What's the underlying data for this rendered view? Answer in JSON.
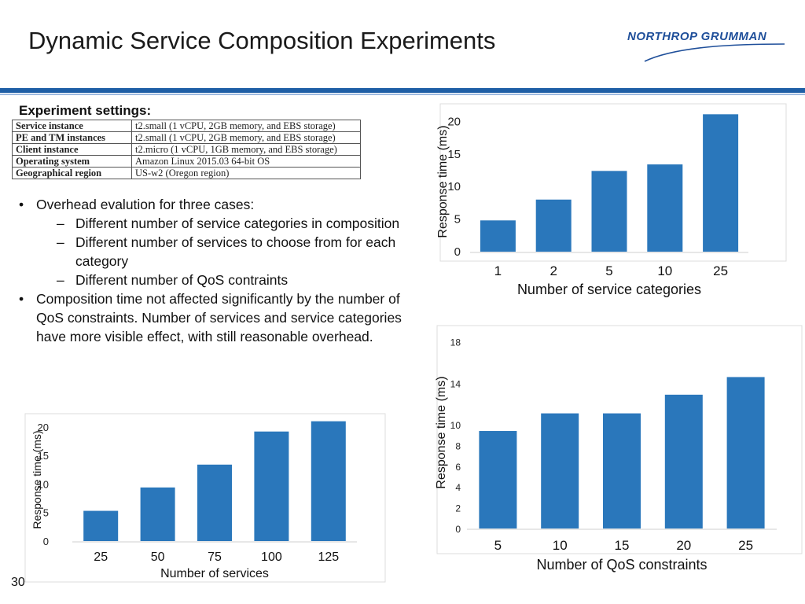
{
  "slide": {
    "title": "Dynamic Service Composition Experiments",
    "logo_text": "NORTHROP GRUMMAN",
    "page_number": "30"
  },
  "settings": {
    "heading": "Experiment settings:",
    "rows": [
      {
        "key": "Service instance",
        "value": "t2.small (1 vCPU, 2GB memory, and EBS storage)"
      },
      {
        "key": "PE and TM instances",
        "value": "t2.small (1 vCPU, 2GB memory, and EBS storage)"
      },
      {
        "key": "Client instance",
        "value": "t2.micro (1 vCPU, 1GB memory, and EBS storage)"
      },
      {
        "key": "Operating system",
        "value": "Amazon Linux 2015.03 64-bit OS"
      },
      {
        "key": "Geographical region",
        "value": "US-w2 (Oregon region)"
      }
    ]
  },
  "bullets": {
    "b1": "Overhead evalution for three cases:",
    "sub1": "Different number of service categories in composition",
    "sub2": "Different number of services to choose from for each category",
    "sub3": "Different number of QoS contraints",
    "b2": "Composition time not affected significantly by the number of QoS constraints. Number of services and service categories have more visible effect, with still reasonable overhead."
  },
  "colors": {
    "bar": "#2a77bb",
    "rule": "#1f5fa6",
    "logo": "#1f4f9a"
  },
  "chart_data": [
    {
      "id": "categories",
      "type": "bar",
      "categories": [
        "1",
        "2",
        "5",
        "10",
        "25"
      ],
      "values": [
        4.8,
        8.0,
        12.4,
        13.4,
        21.1
      ],
      "yticks": [
        "0",
        "5",
        "10",
        "15",
        "20"
      ],
      "ylim": [
        0,
        21.5
      ],
      "xlabel": "Number of service categories",
      "ylabel": "Response time (ms)"
    },
    {
      "id": "qos",
      "type": "bar",
      "categories": [
        "5",
        "10",
        "15",
        "20",
        "25"
      ],
      "values": [
        9.4,
        11.1,
        11.1,
        12.9,
        14.6
      ],
      "yticks": [
        "0",
        "2",
        "4",
        "6",
        "8",
        "10",
        "14",
        "18"
      ],
      "ylim": [
        0,
        18.5
      ],
      "xlabel": "Number of QoS constraints",
      "ylabel": "Response time (ms)"
    },
    {
      "id": "services",
      "type": "bar",
      "categories": [
        "25",
        "50",
        "75",
        "100",
        "125"
      ],
      "values": [
        5.3,
        9.4,
        13.4,
        19.2,
        21.0
      ],
      "yticks": [
        "0",
        "5",
        "10",
        "15",
        "20"
      ],
      "ylim": [
        0,
        21.5
      ],
      "xlabel": "Number of services",
      "ylabel": "Response time (ms)"
    }
  ]
}
